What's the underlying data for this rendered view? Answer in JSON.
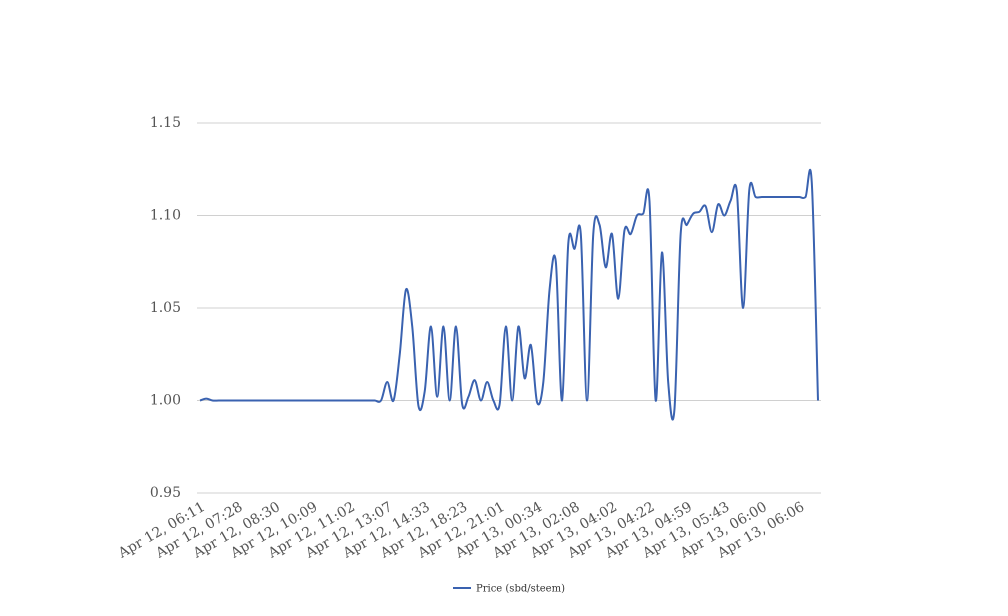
{
  "chart_data": {
    "type": "line",
    "categories": [
      "Apr 12, 06:11",
      null,
      null,
      null,
      null,
      null,
      "Apr 12, 07:28",
      null,
      null,
      null,
      null,
      null,
      "Apr 12, 08:30",
      null,
      null,
      null,
      null,
      null,
      "Apr 12, 10:09",
      null,
      null,
      null,
      null,
      null,
      "Apr 12, 11:02",
      null,
      null,
      null,
      null,
      null,
      "Apr 12, 13:07",
      null,
      null,
      null,
      null,
      null,
      "Apr 12, 14:33",
      null,
      null,
      null,
      null,
      null,
      "Apr 12, 18:23",
      null,
      null,
      null,
      null,
      null,
      "Apr 12, 21:01",
      null,
      null,
      null,
      null,
      null,
      "Apr 13, 00:34",
      null,
      null,
      null,
      null,
      null,
      "Apr 13, 02:08",
      null,
      null,
      null,
      null,
      null,
      "Apr 13, 04:02",
      null,
      null,
      null,
      null,
      null,
      "Apr 13, 04:22",
      null,
      null,
      null,
      null,
      null,
      "Apr 13, 04:59",
      null,
      null,
      null,
      null,
      null,
      "Apr 13, 05:43",
      null,
      null,
      null,
      null,
      null,
      "Apr 13, 06:00",
      null,
      null,
      null,
      null,
      null,
      "Apr 13, 06:06",
      null,
      null,
      null
    ],
    "series": [
      {
        "name": "Price (sbd/steem)",
        "color": "#3a62b0",
        "values": [
          1.0,
          1.001,
          1.0,
          1.0,
          1.0,
          1.0,
          1.0,
          1.0,
          1.0,
          1.0,
          1.0,
          1.0,
          1.0,
          1.0,
          1.0,
          1.0,
          1.0,
          1.0,
          1.0,
          1.0,
          1.0,
          1.0,
          1.0,
          1.0,
          1.0,
          1.0,
          1.0,
          1.0,
          1.0,
          1.0,
          1.01,
          1.0,
          1.025,
          1.06,
          1.04,
          0.997,
          1.005,
          1.04,
          1.002,
          1.04,
          1.0,
          1.04,
          0.998,
          1.002,
          1.011,
          1.0,
          1.01,
          1.0,
          0.998,
          1.04,
          1.0,
          1.04,
          1.012,
          1.03,
          0.999,
          1.01,
          1.06,
          1.075,
          1.0,
          1.085,
          1.082,
          1.09,
          1.0,
          1.09,
          1.095,
          1.072,
          1.09,
          1.055,
          1.092,
          1.09,
          1.1,
          1.101,
          1.108,
          1.0,
          1.08,
          1.01,
          0.995,
          1.09,
          1.095,
          1.101,
          1.102,
          1.105,
          1.091,
          1.106,
          1.1,
          1.108,
          1.113,
          1.05,
          1.114,
          1.11,
          1.11,
          1.11,
          1.11,
          1.11,
          1.11,
          1.11,
          1.11,
          1.11,
          1.118,
          1.0
        ]
      }
    ],
    "ylim": [
      0.95,
      1.15
    ],
    "yticks": [
      0.95,
      {
        "value": 1,
        "label": "1.00"
      },
      1.05,
      {
        "value": 1.1,
        "label": "1.10"
      },
      1.15
    ],
    "grid": true,
    "legend": "bottom"
  }
}
